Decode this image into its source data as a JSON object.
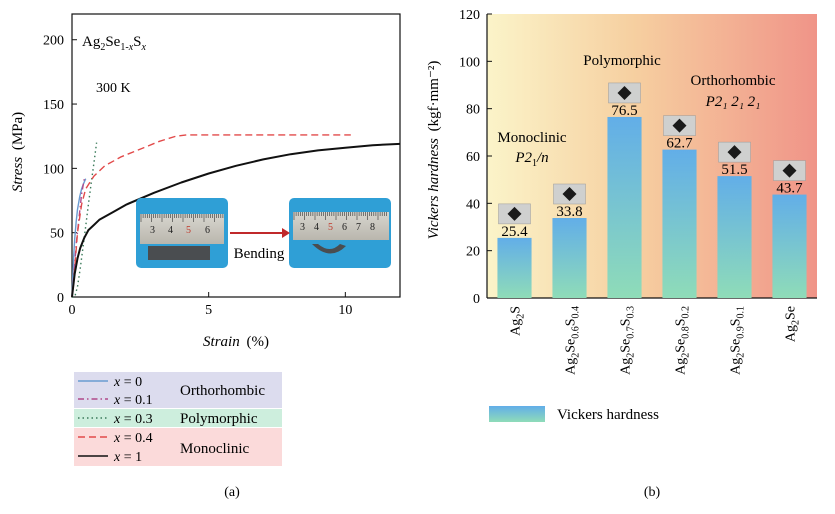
{
  "chart_data": [
    {
      "panel": "(a)",
      "type": "line",
      "title": "",
      "xlabel": "Strain",
      "xlabel_unit": "(%)",
      "ylabel": "Stress",
      "ylabel_unit": "(MPa)",
      "xlim": [
        0,
        12
      ],
      "ylim": [
        0,
        220
      ],
      "x_ticks": [
        0,
        5,
        10
      ],
      "y_ticks": [
        0,
        50,
        100,
        150,
        200
      ],
      "grid": false,
      "annotations": {
        "compound": "Ag₂Se₁₋ₓSₓ",
        "compound_main": "Ag",
        "compound_sub1": "2",
        "compound_mid": "Se",
        "compound_sub2": "1-",
        "compound_sub2_var": "x",
        "compound_s": "S",
        "compound_sub3": "x",
        "temperature": "300 K",
        "bending": "Bending",
        "ruler_left_numbers": [
          "3",
          "4",
          "5",
          "6"
        ],
        "ruler_right_numbers": [
          "3",
          "4",
          "5",
          "6",
          "7",
          "8"
        ]
      },
      "series": [
        {
          "name": "x = 0",
          "color": "#6a9bd1",
          "dash": "solid",
          "x": [
            0,
            0.05,
            0.1,
            0.15,
            0.2,
            0.28,
            0.35,
            0.42,
            0.5
          ],
          "y": [
            0,
            28,
            45,
            58,
            68,
            78,
            84,
            88,
            92
          ]
        },
        {
          "name": "x = 0.1",
          "color": "#b04a8a",
          "dash": "dashdot",
          "x": [
            0,
            0.08,
            0.15,
            0.25,
            0.35,
            0.45
          ],
          "y": [
            0,
            20,
            40,
            60,
            80,
            92
          ]
        },
        {
          "name": "x = 0.3",
          "color": "#3a7a5a",
          "dash": "dotted",
          "x": [
            0,
            0.1,
            0.2,
            0.3,
            0.4,
            0.5,
            0.6,
            0.7,
            0.8,
            0.9
          ],
          "y": [
            0,
            0,
            8,
            22,
            38,
            55,
            72,
            88,
            104,
            120
          ]
        },
        {
          "name": "x = 0.4",
          "color": "#e24a4a",
          "dash": "dashed",
          "x": [
            0,
            0.1,
            0.2,
            0.35,
            0.5,
            0.8,
            1.2,
            1.8,
            2.5,
            3.2,
            3.8,
            4.2,
            6,
            8,
            10.2
          ],
          "y": [
            0,
            22,
            50,
            72,
            84,
            94,
            102,
            109,
            115,
            121,
            125,
            126,
            126,
            126,
            126
          ]
        },
        {
          "name": "x = 1",
          "color": "#111111",
          "dash": "solid",
          "x": [
            0,
            0.1,
            0.2,
            0.3,
            0.45,
            0.6,
            0.8,
            1.0,
            1.5,
            2,
            3,
            4,
            5,
            6,
            7,
            8,
            9,
            10,
            11,
            12
          ],
          "y": [
            0,
            18,
            30,
            38,
            46,
            52,
            56,
            60,
            66,
            72,
            81,
            89,
            96,
            102,
            107,
            111,
            114,
            116,
            118,
            119
          ]
        }
      ],
      "legend": {
        "placement": "below",
        "entries": [
          "x = 0",
          "x = 0.1",
          "x = 0.3",
          "x = 0.4",
          "x = 1"
        ],
        "groups": [
          {
            "label": "Orthorhombic",
            "members": [
              "x = 0",
              "x = 0.1"
            ],
            "bg": "#dcdcee"
          },
          {
            "label": "Polymorphic",
            "members": [
              "x = 0.3"
            ],
            "bg": "#cdeedd"
          },
          {
            "label": "Monoclinic",
            "members": [
              "x = 0.4",
              "x = 1"
            ],
            "bg": "#fbdada"
          }
        ]
      }
    },
    {
      "panel": "(b)",
      "type": "bar",
      "title": "",
      "ylabel": "Vickers hardness",
      "ylabel_unit": "(kgf·mm⁻²)",
      "ylim": [
        0,
        120
      ],
      "y_ticks": [
        0,
        20,
        40,
        60,
        80,
        100,
        120
      ],
      "grid": false,
      "categories": [
        "Ag₂S",
        "Ag₂Se₀.₆S₀.₄",
        "Ag₂Se₀.₇S₀.₃",
        "Ag₂Se₀.₈S₀.₂",
        "Ag₂Se₀.₉S₀.₁",
        "Ag₂Se"
      ],
      "category_parts": [
        [
          "Ag",
          "2",
          "S",
          "",
          "",
          ""
        ],
        [
          "Ag",
          "2",
          "Se",
          "0.6",
          "S",
          "0.4"
        ],
        [
          "Ag",
          "2",
          "Se",
          "0.7",
          "S",
          "0.3"
        ],
        [
          "Ag",
          "2",
          "Se",
          "0.8",
          "S",
          "0.2"
        ],
        [
          "Ag",
          "2",
          "Se",
          "0.9",
          "S",
          "0.1"
        ],
        [
          "Ag",
          "2",
          "Se",
          "",
          "",
          ""
        ]
      ],
      "values": [
        25.4,
        33.8,
        76.5,
        62.7,
        51.5,
        43.7
      ],
      "value_labels": [
        "25.4",
        "33.8",
        "76.5",
        "62.7",
        "51.5",
        "43.7"
      ],
      "bar_color_top": "#62aee8",
      "bar_color_bottom": "#8fdcb8",
      "background_gradient": [
        "#fbf4c9",
        "#f6cfa0",
        "#f09488"
      ],
      "annotations": {
        "monoclinic": "Monoclinic",
        "monoclinic_group_main": "P2",
        "monoclinic_group_sub": "1",
        "monoclinic_group_tail": "/n",
        "polymorphic": "Polymorphic",
        "orthorhombic": "Orthorhombic",
        "orthorhombic_group": "P2₁ 2₁ 2₁"
      },
      "legend": {
        "placement": "below",
        "entries": [
          "Vickers hardness"
        ]
      }
    }
  ]
}
